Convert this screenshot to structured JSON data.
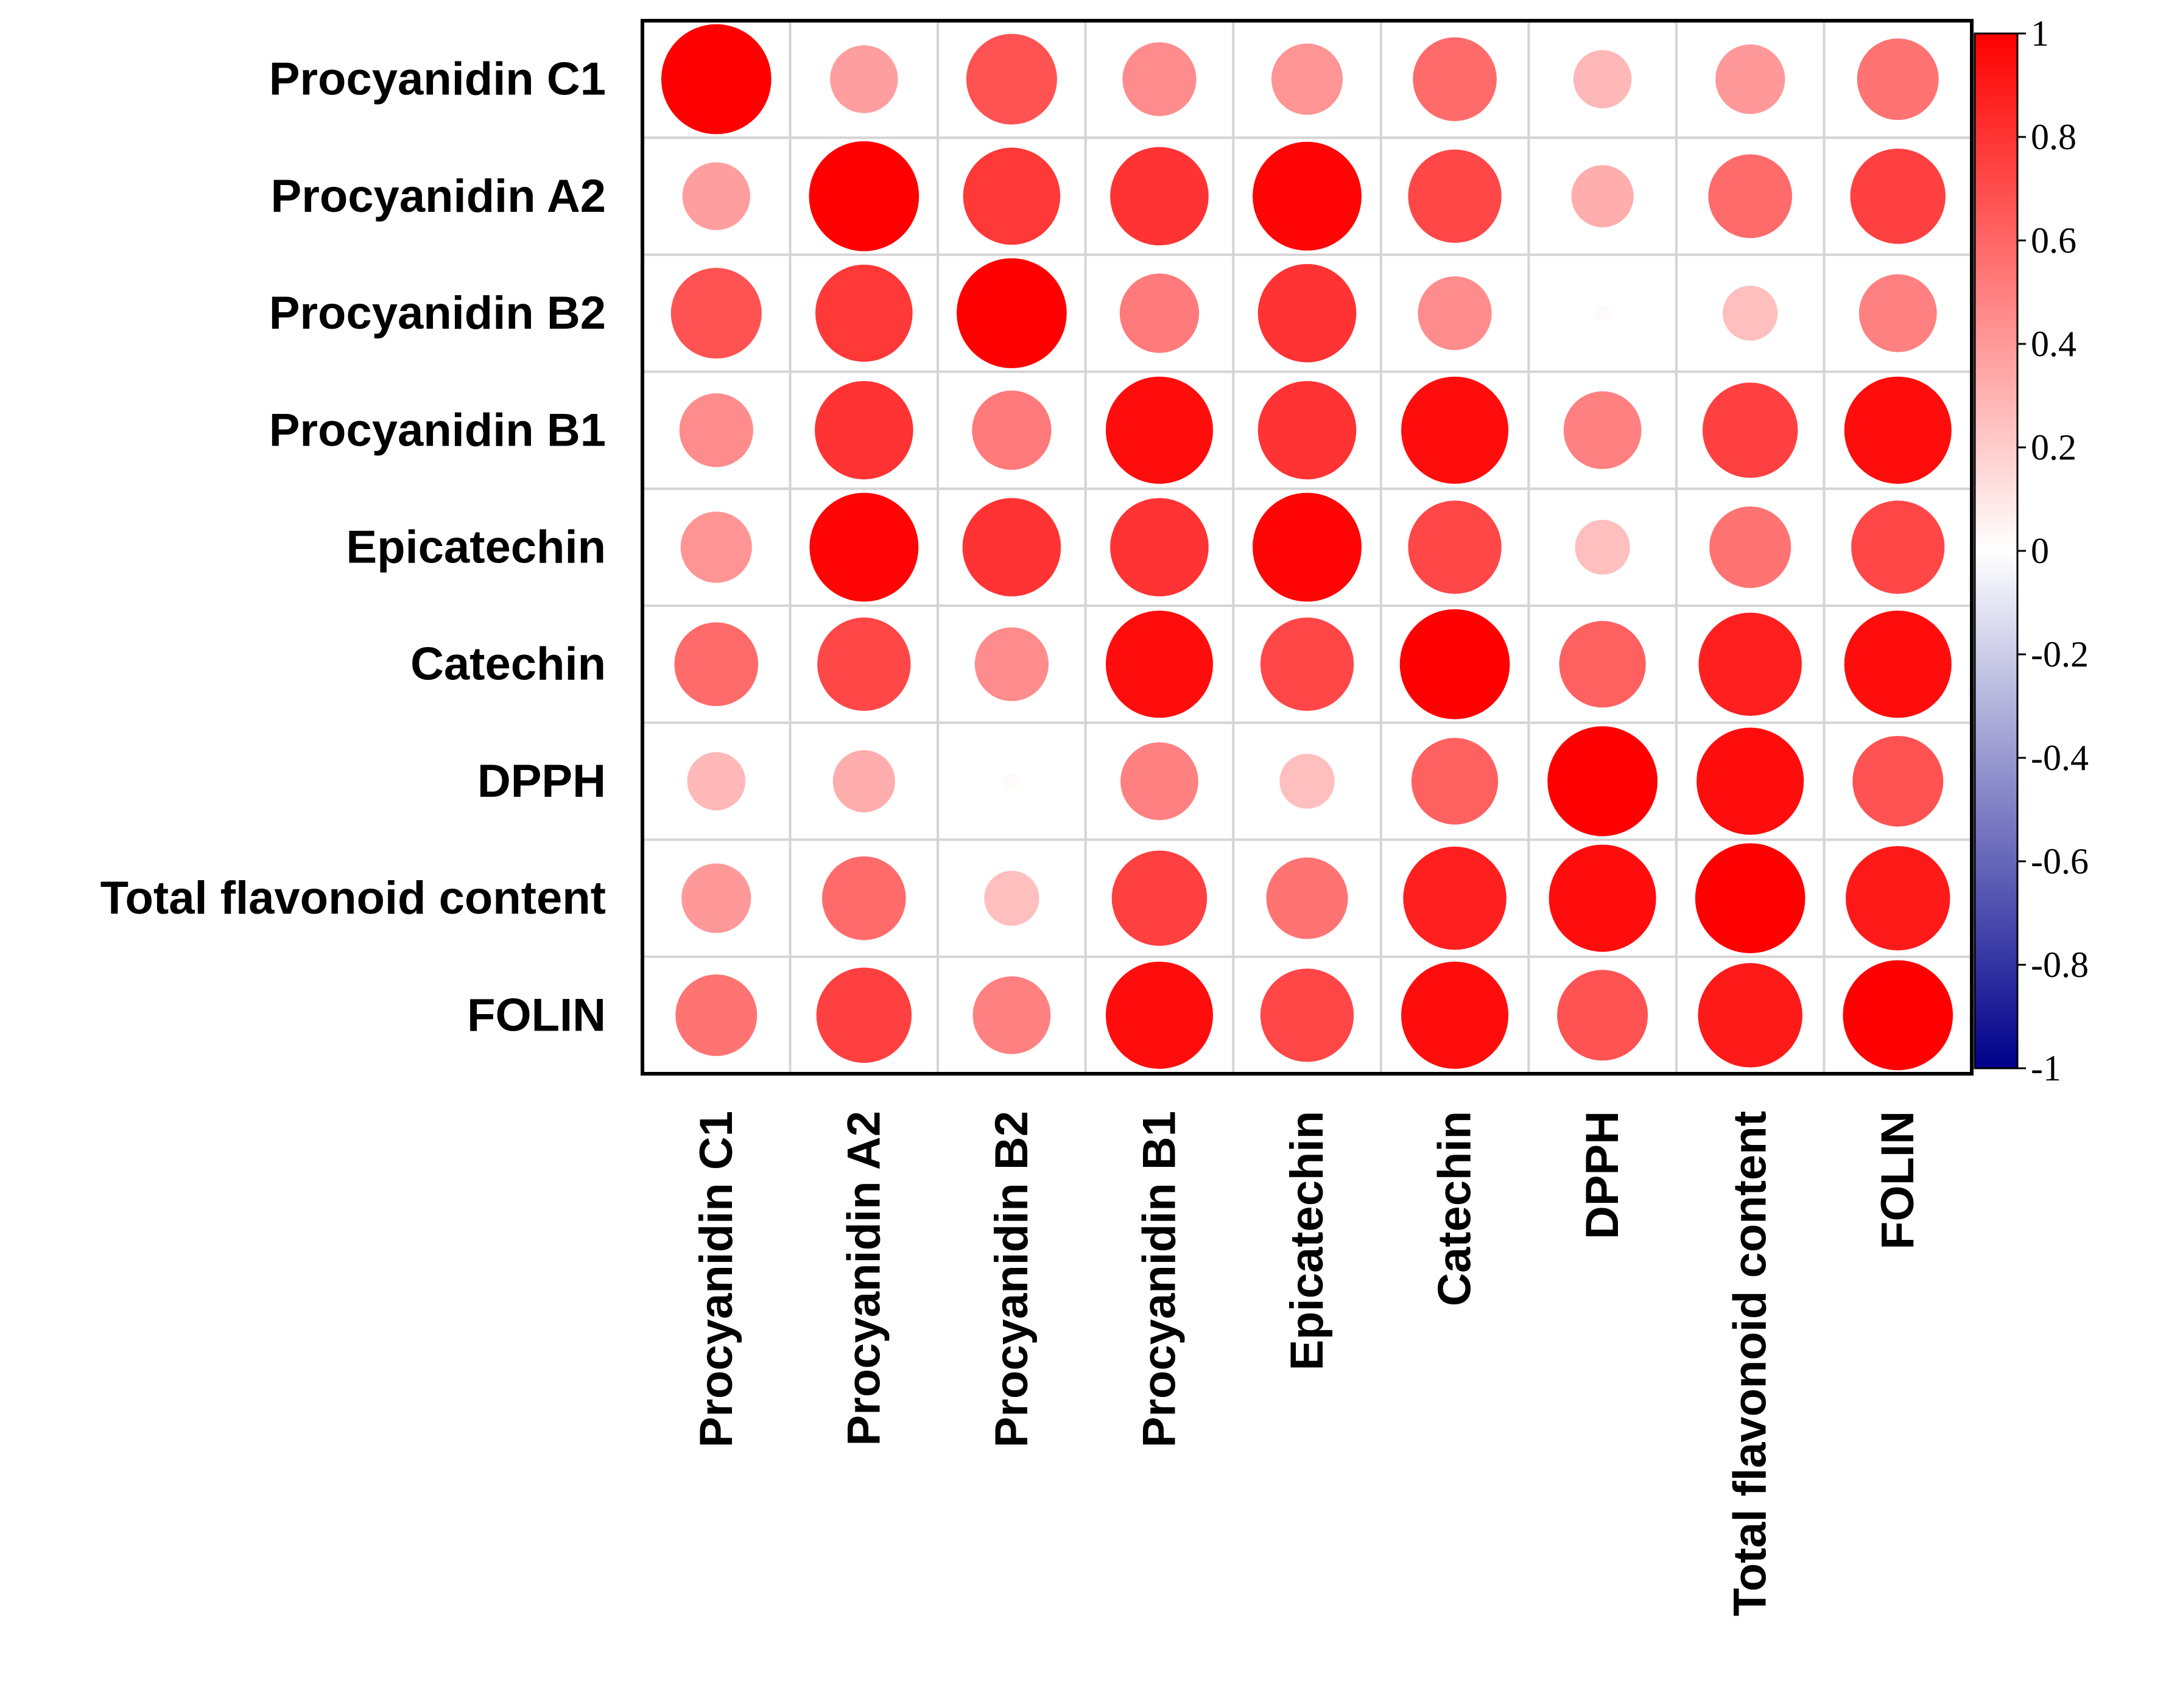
{
  "chart_data": {
    "type": "heatmap",
    "subtype": "correlation-circle-matrix",
    "title": "",
    "row_labels": [
      "Procyanidin C1",
      "Procyanidin A2",
      "Procyanidin B2",
      "Procyanidin B1",
      "Epicatechin",
      "Catechin",
      "DPPH",
      "Total flavonoid content",
      "FOLIN"
    ],
    "col_labels": [
      "Procyanidin C1",
      "Procyanidin A2",
      "Procyanidin B2",
      "Procyanidin B1",
      "Epicatechin",
      "Catechin",
      "DPPH",
      "Total flavonoid content",
      "FOLIN"
    ],
    "values": [
      [
        1.0,
        0.38,
        0.68,
        0.45,
        0.42,
        0.58,
        0.28,
        0.4,
        0.55
      ],
      [
        0.38,
        1.0,
        0.78,
        0.8,
        0.98,
        0.72,
        0.32,
        0.58,
        0.75
      ],
      [
        0.68,
        0.78,
        1.0,
        0.52,
        0.8,
        0.45,
        0.02,
        0.25,
        0.5
      ],
      [
        0.45,
        0.8,
        0.52,
        0.95,
        0.8,
        0.95,
        0.5,
        0.75,
        0.95
      ],
      [
        0.42,
        0.98,
        0.8,
        0.8,
        0.98,
        0.72,
        0.25,
        0.55,
        0.72
      ],
      [
        0.58,
        0.72,
        0.45,
        0.95,
        0.72,
        1.0,
        0.62,
        0.88,
        0.95
      ],
      [
        0.28,
        0.32,
        0.02,
        0.5,
        0.25,
        0.62,
        1.0,
        0.95,
        0.68
      ],
      [
        0.4,
        0.58,
        0.25,
        0.75,
        0.55,
        0.88,
        0.95,
        1.0,
        0.9
      ],
      [
        0.55,
        0.75,
        0.5,
        0.95,
        0.72,
        0.95,
        0.68,
        0.9,
        1.0
      ]
    ],
    "color_scale": {
      "range": [
        -1,
        1
      ],
      "low_color": "#00008B",
      "mid_color": "#FFFFFF",
      "high_color": "#FF0000",
      "ticks": [
        "1",
        "0.8",
        "0.6",
        "0.4",
        "0.2",
        "0",
        "-0.2",
        "-0.4",
        "-0.6",
        "-0.8",
        "-1"
      ],
      "placement": "right"
    },
    "colors": {
      "grid": "#d4d4d4",
      "border": "#000000"
    }
  }
}
